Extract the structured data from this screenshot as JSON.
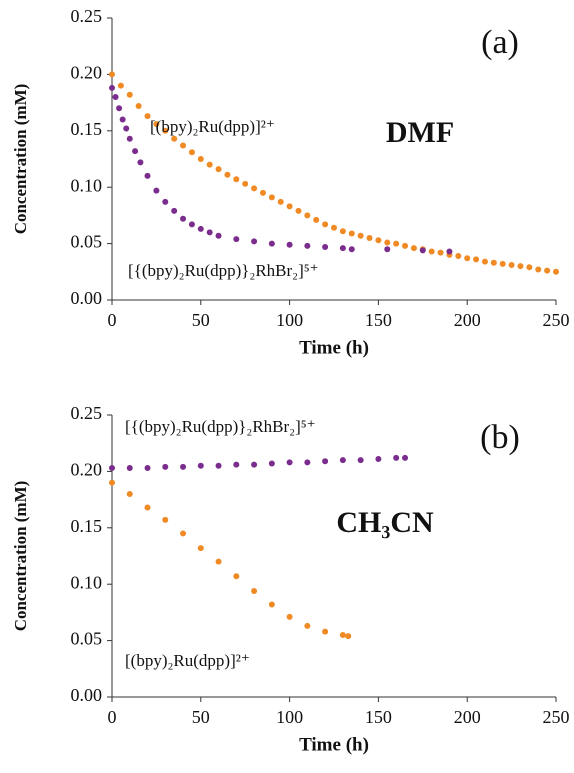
{
  "chart_data": [
    {
      "type": "scatter",
      "annotations": [
        "(a)",
        "DMF"
      ],
      "x_label": "Time (h)",
      "y_label": "Concentration (mM)",
      "xlim": [
        0,
        250
      ],
      "xticks": [
        0,
        50,
        100,
        150,
        200,
        250
      ],
      "ylim": [
        0,
        0.25
      ],
      "yticks": [
        {
          "value": 0,
          "label": "0.00"
        },
        {
          "value": 0.05,
          "label": "0.05"
        },
        {
          "value": 0.1,
          "label": "0.10"
        },
        {
          "value": 0.15,
          "label": "0.15"
        },
        {
          "value": 0.2,
          "label": "0.20"
        },
        {
          "value": 0.25,
          "label": "0.25"
        }
      ],
      "series": [
        {
          "name": "[(bpy)₂Ru(dpp)]²⁺",
          "color": "#f08a24",
          "x": [
            0,
            5,
            10,
            15,
            20,
            25,
            30,
            35,
            40,
            45,
            50,
            55,
            60,
            65,
            70,
            75,
            80,
            85,
            90,
            95,
            100,
            105,
            110,
            115,
            120,
            125,
            130,
            135,
            140,
            145,
            150,
            155,
            160,
            165,
            170,
            175,
            180,
            185,
            190,
            195,
            200,
            205,
            210,
            215,
            220,
            225,
            230,
            235,
            240,
            245,
            250
          ],
          "values": [
            0.2,
            0.19,
            0.182,
            0.172,
            0.163,
            0.156,
            0.15,
            0.143,
            0.137,
            0.131,
            0.125,
            0.12,
            0.116,
            0.111,
            0.107,
            0.103,
            0.099,
            0.095,
            0.091,
            0.087,
            0.083,
            0.079,
            0.075,
            0.071,
            0.067,
            0.064,
            0.061,
            0.059,
            0.057,
            0.055,
            0.053,
            0.051,
            0.05,
            0.048,
            0.046,
            0.045,
            0.043,
            0.042,
            0.04,
            0.039,
            0.037,
            0.036,
            0.034,
            0.033,
            0.032,
            0.031,
            0.03,
            0.029,
            0.027,
            0.026,
            0.025
          ]
        },
        {
          "name": "[{(bpy)₂Ru(dpp)}₂RhBr₂]⁵⁺",
          "color": "#7b2d8e",
          "x": [
            0,
            2,
            4,
            6,
            8,
            10,
            13,
            16,
            20,
            25,
            30,
            35,
            40,
            45,
            50,
            55,
            60,
            70,
            80,
            90,
            100,
            110,
            120,
            130,
            135,
            155,
            175,
            190
          ],
          "values": [
            0.188,
            0.18,
            0.17,
            0.16,
            0.152,
            0.143,
            0.132,
            0.122,
            0.11,
            0.097,
            0.087,
            0.079,
            0.072,
            0.067,
            0.063,
            0.06,
            0.057,
            0.054,
            0.052,
            0.05,
            0.049,
            0.048,
            0.047,
            0.046,
            0.045,
            0.045,
            0.044,
            0.043
          ]
        }
      ]
    },
    {
      "type": "scatter",
      "annotations": [
        "(b)",
        "CH₃CN"
      ],
      "x_label": "Time (h)",
      "y_label": "Concentration (mM)",
      "xlim": [
        0,
        250
      ],
      "xticks": [
        0,
        50,
        100,
        150,
        200,
        250
      ],
      "ylim": [
        0,
        0.25
      ],
      "yticks": [
        {
          "value": 0,
          "label": "0.00"
        },
        {
          "value": 0.05,
          "label": "0.05"
        },
        {
          "value": 0.1,
          "label": "0.10"
        },
        {
          "value": 0.15,
          "label": "0.15"
        },
        {
          "value": 0.2,
          "label": "0.20"
        },
        {
          "value": 0.25,
          "label": "0.25"
        }
      ],
      "series": [
        {
          "name": "[{(bpy)₂Ru(dpp)}₂RhBr₂]⁵⁺",
          "color": "#7b2d8e",
          "x": [
            0,
            10,
            20,
            30,
            40,
            50,
            60,
            70,
            80,
            90,
            100,
            110,
            120,
            130,
            140,
            150,
            160,
            165
          ],
          "values": [
            0.203,
            0.203,
            0.203,
            0.204,
            0.204,
            0.205,
            0.205,
            0.206,
            0.206,
            0.207,
            0.208,
            0.208,
            0.209,
            0.21,
            0.21,
            0.211,
            0.212,
            0.212
          ]
        },
        {
          "name": "[(bpy)₂Ru(dpp)]²⁺",
          "color": "#f08a24",
          "x": [
            0,
            10,
            20,
            30,
            40,
            50,
            60,
            70,
            80,
            90,
            100,
            110,
            120,
            130,
            133
          ],
          "values": [
            0.19,
            0.18,
            0.168,
            0.157,
            0.145,
            0.132,
            0.12,
            0.107,
            0.094,
            0.082,
            0.071,
            0.063,
            0.058,
            0.055,
            0.054
          ]
        }
      ]
    }
  ]
}
